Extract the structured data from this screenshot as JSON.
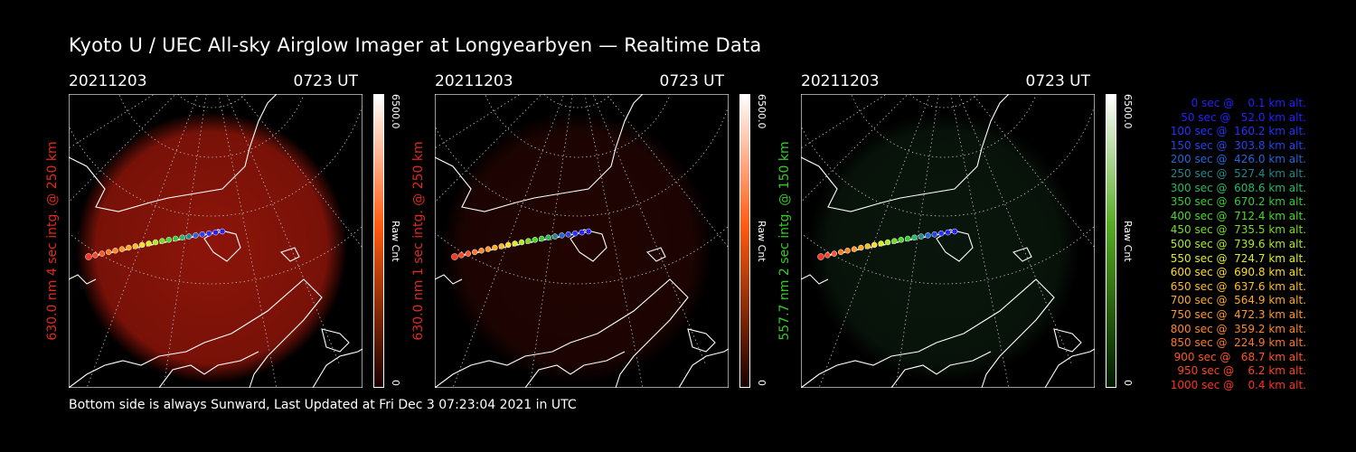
{
  "title": "Kyoto U / UEC All-sky Airglow Imager at Longyearbyen — Realtime Data",
  "panels": [
    {
      "date": "20211203",
      "time": "0723 UT",
      "ylabel": "630.0 nm 4 sec intg. @ 250 km",
      "label_color": "#e02a1c",
      "glow": "#b01a0c",
      "glow_level": 0.8,
      "cbar_top": "#ffffff",
      "cbar_mid": "#ff5a10",
      "cbar_bot": "#1a0000",
      "cmax": "6500.0",
      "cmin": "0",
      "cunit": "Raw Cnt"
    },
    {
      "date": "20211203",
      "time": "0723 UT",
      "ylabel": "630.0 nm 1 sec intg. @ 250 km",
      "label_color": "#e02a1c",
      "glow": "#4a0a06",
      "glow_level": 0.45,
      "cbar_top": "#ffffff",
      "cbar_mid": "#ff5a10",
      "cbar_bot": "#1a0000",
      "cmax": "6500.0",
      "cmin": "0",
      "cunit": "Raw Cnt"
    },
    {
      "date": "20211203",
      "time": "0723 UT",
      "ylabel": "557.7 nm 2 sec intg. @ 150 km",
      "label_color": "#33cc22",
      "glow": "#15301a",
      "glow_level": 0.45,
      "cbar_top": "#ffffff",
      "cbar_mid": "#55aa22",
      "cbar_bot": "#001a00",
      "cmax": "6500.0",
      "cmin": "0",
      "cunit": "Raw Cnt"
    }
  ],
  "footer": "Bottom side is always Sunward, Last Updated at Fri Dec  3 07:23:04 2021 in UTC",
  "legend": [
    {
      "text": "   0 sec @    0.1 km alt.",
      "color": "#2222ff"
    },
    {
      "text": "  50 sec @   52.0 km alt.",
      "color": "#2222ff"
    },
    {
      "text": " 100 sec @  160.2 km alt.",
      "color": "#2233ff"
    },
    {
      "text": " 150 sec @  303.8 km alt.",
      "color": "#2244ee"
    },
    {
      "text": " 200 sec @  426.0 km alt.",
      "color": "#2266dd"
    },
    {
      "text": " 250 sec @  527.4 km alt.",
      "color": "#22888e"
    },
    {
      "text": " 300 sec @  608.6 km alt.",
      "color": "#22bb66"
    },
    {
      "text": " 350 sec @  670.2 km alt.",
      "color": "#33cc33"
    },
    {
      "text": " 400 sec @  712.4 km alt.",
      "color": "#44dd22"
    },
    {
      "text": " 450 sec @  735.5 km alt.",
      "color": "#77dd22"
    },
    {
      "text": " 500 sec @  739.6 km alt.",
      "color": "#aaee22"
    },
    {
      "text": " 550 sec @  724.7 km alt.",
      "color": "#ddee22"
    },
    {
      "text": " 600 sec @  690.8 km alt.",
      "color": "#ffdd22"
    },
    {
      "text": " 650 sec @  637.6 km alt.",
      "color": "#ffbb22"
    },
    {
      "text": " 700 sec @  564.9 km alt.",
      "color": "#ffaa22"
    },
    {
      "text": " 750 sec @  472.3 km alt.",
      "color": "#ff9922"
    },
    {
      "text": " 800 sec @  359.2 km alt.",
      "color": "#ff8822"
    },
    {
      "text": " 850 sec @  224.9 km alt.",
      "color": "#ff7722"
    },
    {
      "text": " 900 sec @   68.7 km alt.",
      "color": "#ff5522"
    },
    {
      "text": " 950 sec @    6.2 km alt.",
      "color": "#ff4422"
    },
    {
      "text": "1000 sec @    0.4 km alt.",
      "color": "#ff3322"
    }
  ]
}
